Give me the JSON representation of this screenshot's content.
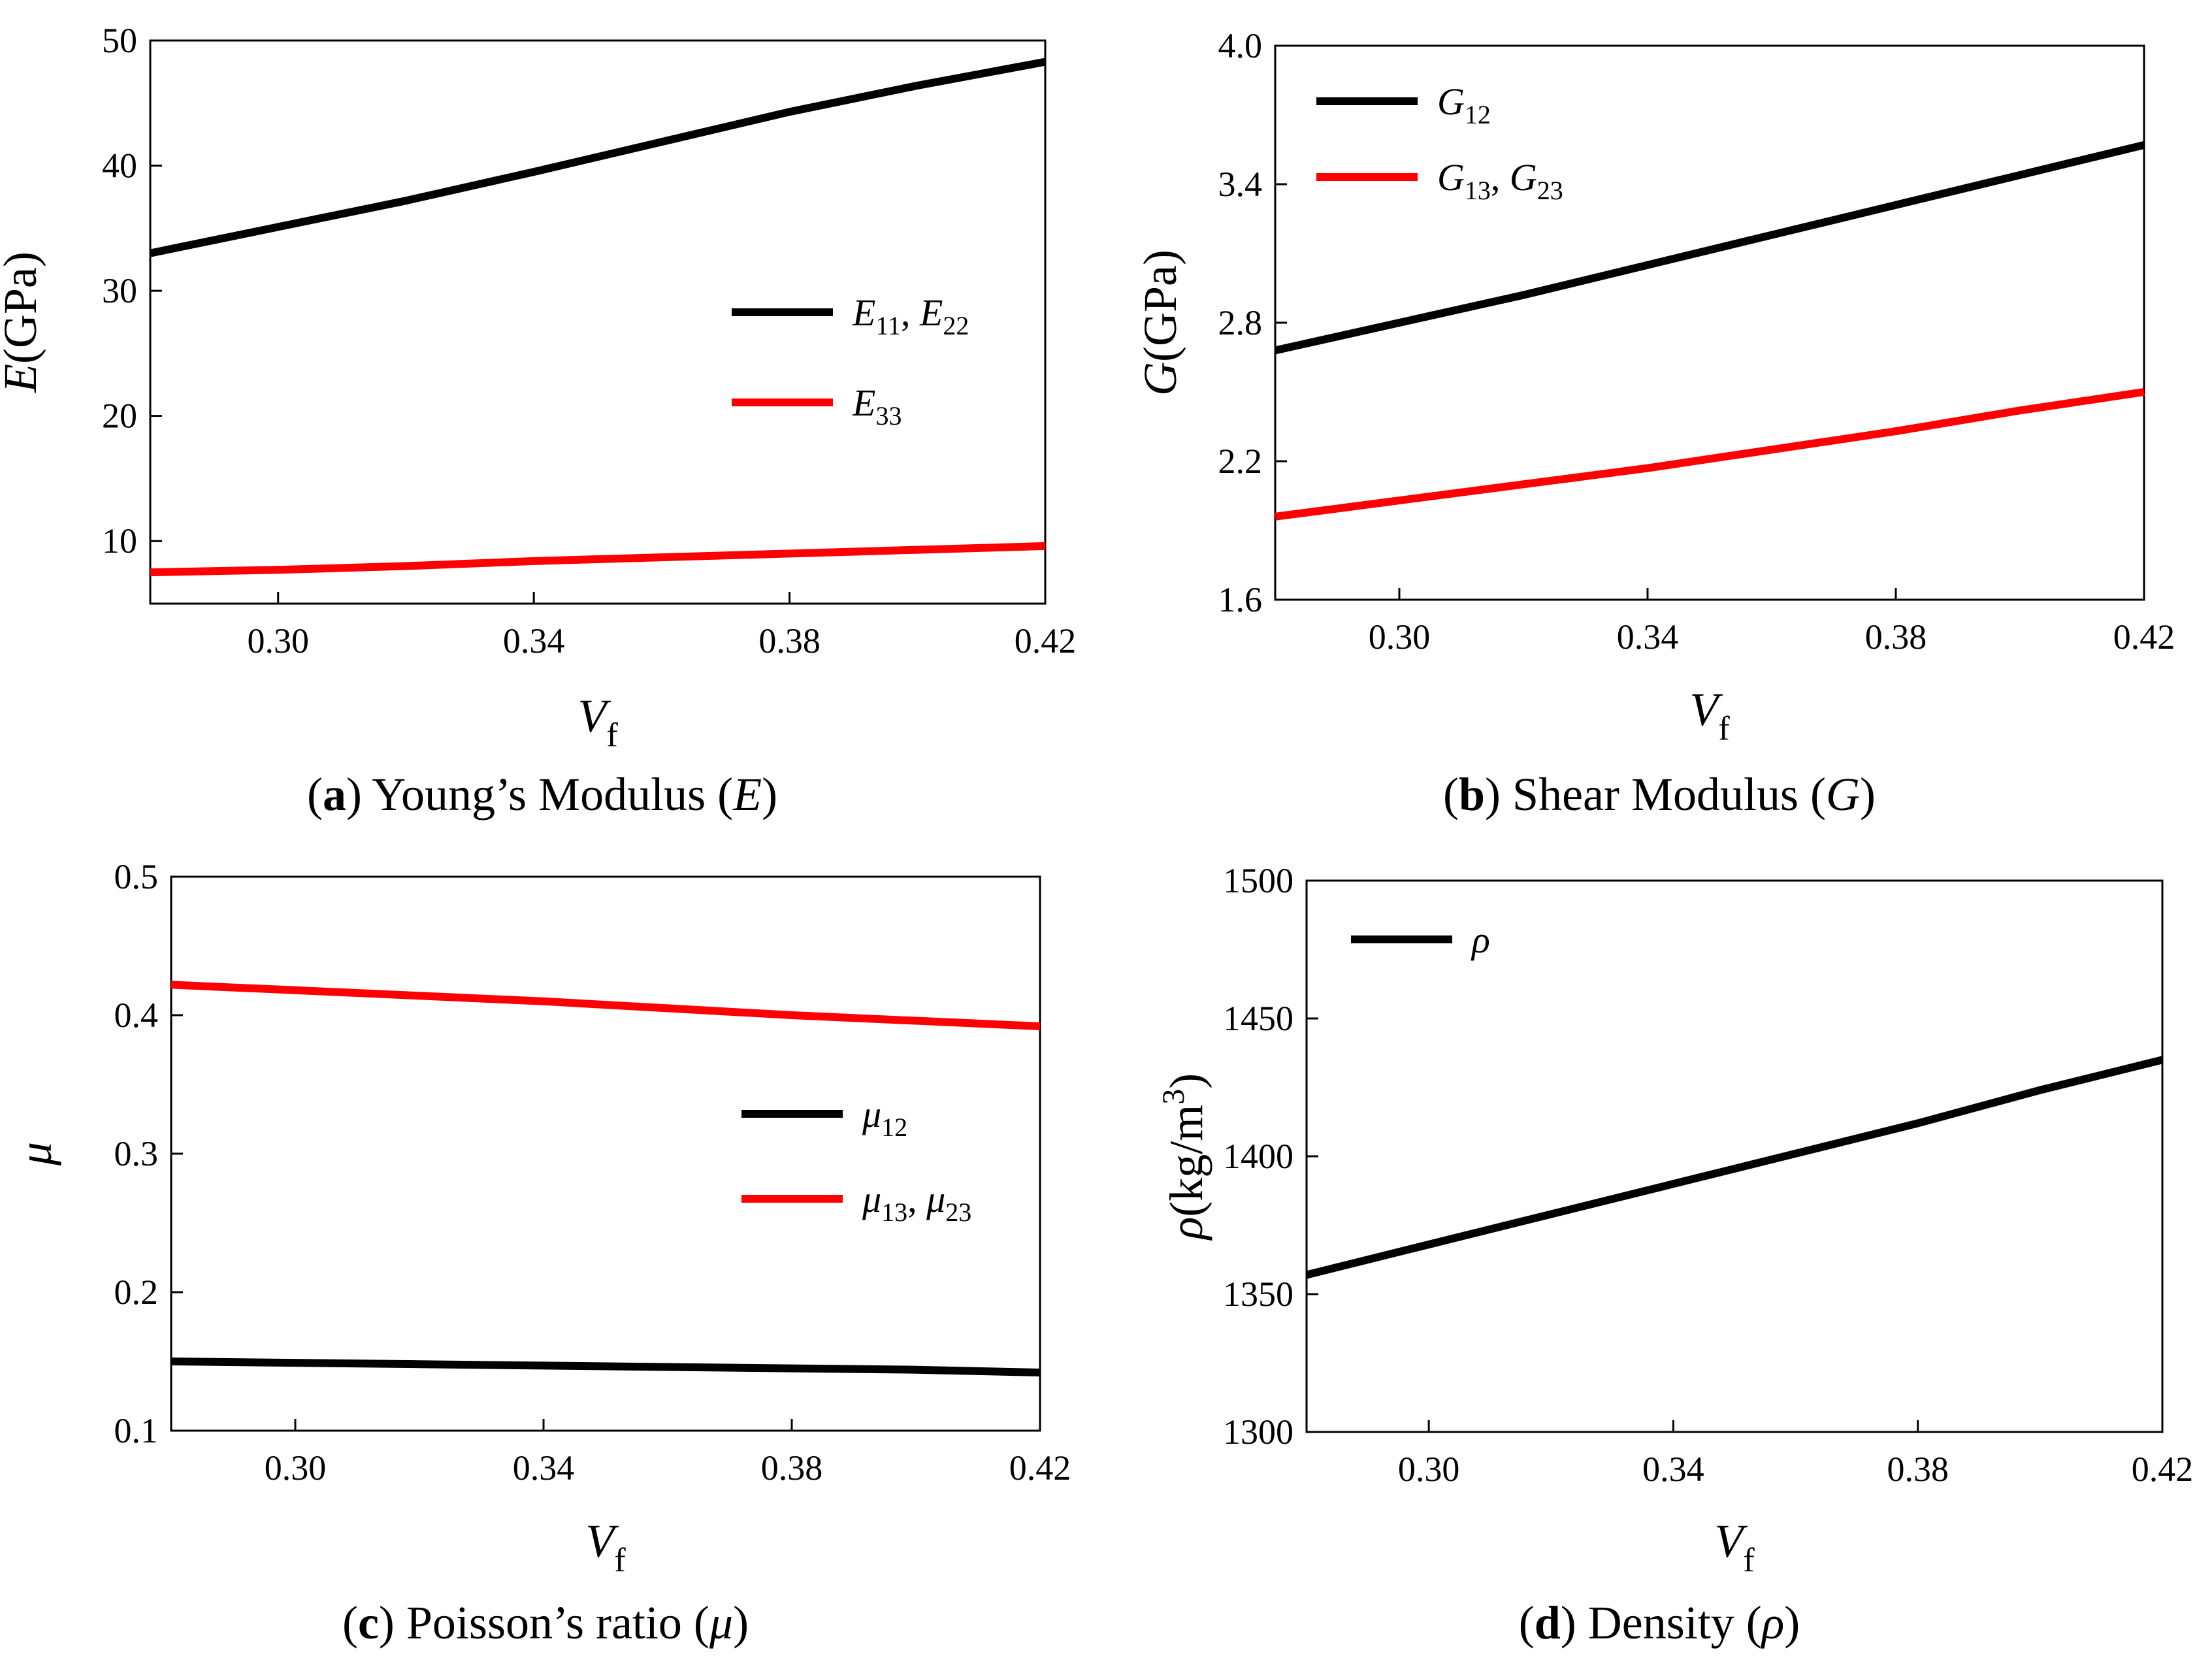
{
  "chart_data": [
    {
      "id": "a",
      "type": "line",
      "x": [
        0.28,
        0.3,
        0.32,
        0.34,
        0.36,
        0.38,
        0.4,
        0.42
      ],
      "series": [
        {
          "name": "E11, E22",
          "main": "E",
          "sub": "11",
          "main2": "E",
          "sub2": "22",
          "color": "#000000",
          "values": [
            33.0,
            35.1,
            37.2,
            39.5,
            41.9,
            44.3,
            46.4,
            48.3
          ]
        },
        {
          "name": "E33",
          "main": "E",
          "sub": "33",
          "color": "#ff0000",
          "values": [
            7.5,
            7.7,
            8.0,
            8.4,
            8.7,
            9.0,
            9.3,
            9.6
          ]
        }
      ],
      "xlim": [
        0.28,
        0.42
      ],
      "ylim": [
        5,
        50
      ],
      "xticks": [
        0.3,
        0.34,
        0.38,
        0.42
      ],
      "xtick_labels": [
        "0.30",
        "0.34",
        "0.38",
        "0.42"
      ],
      "yticks": [
        10,
        20,
        30,
        40,
        50
      ],
      "ytick_labels": [
        "10",
        "20",
        "30",
        "40",
        "50"
      ],
      "xlabel": {
        "main": "V",
        "sub": "f"
      },
      "ylabel": {
        "symbol": "E",
        "unit": "(GPa)"
      },
      "caption": {
        "letter": "a",
        "text": " Young’s Modulus (",
        "symbol": "E",
        "close": ")"
      },
      "legend": "center-right"
    },
    {
      "id": "b",
      "type": "line",
      "x": [
        0.28,
        0.3,
        0.32,
        0.34,
        0.36,
        0.38,
        0.4,
        0.42
      ],
      "series": [
        {
          "name": "G12",
          "main": "G",
          "sub": "12",
          "color": "#000000",
          "values": [
            2.68,
            2.8,
            2.92,
            3.05,
            3.18,
            3.31,
            3.44,
            3.57
          ]
        },
        {
          "name": "G13, G23",
          "main": "G",
          "sub": "13",
          "main2": "G",
          "sub2": "23",
          "color": "#ff0000",
          "values": [
            1.96,
            2.03,
            2.1,
            2.17,
            2.25,
            2.33,
            2.42,
            2.5
          ]
        }
      ],
      "xlim": [
        0.28,
        0.42
      ],
      "ylim": [
        1.6,
        4.0
      ],
      "xticks": [
        0.3,
        0.34,
        0.38,
        0.42
      ],
      "xtick_labels": [
        "0.30",
        "0.34",
        "0.38",
        "0.42"
      ],
      "yticks": [
        1.6,
        2.2,
        2.8,
        3.4,
        4.0
      ],
      "ytick_labels": [
        "1.6",
        "2.2",
        "2.8",
        "3.4",
        "4.0"
      ],
      "xlabel": {
        "main": "V",
        "sub": "f"
      },
      "ylabel": {
        "symbol": "G",
        "unit": "(GPa)"
      },
      "caption": {
        "letter": "b",
        "text": " Shear Modulus (",
        "symbol": "G",
        "close": ")"
      },
      "legend": "top-left"
    },
    {
      "id": "c",
      "type": "line",
      "x": [
        0.28,
        0.3,
        0.32,
        0.34,
        0.36,
        0.38,
        0.4,
        0.42
      ],
      "series": [
        {
          "name": "μ12",
          "main": "μ",
          "sub": "12",
          "color": "#000000",
          "values": [
            0.15,
            0.149,
            0.148,
            0.147,
            0.146,
            0.145,
            0.144,
            0.142
          ]
        },
        {
          "name": "μ13, μ23",
          "main": "μ",
          "sub": "13",
          "main2": "μ",
          "sub2": "23",
          "color": "#ff0000",
          "values": [
            0.422,
            0.418,
            0.414,
            0.41,
            0.405,
            0.4,
            0.396,
            0.392
          ]
        }
      ],
      "xlim": [
        0.28,
        0.42
      ],
      "ylim": [
        0.1,
        0.5
      ],
      "xticks": [
        0.3,
        0.34,
        0.38,
        0.42
      ],
      "xtick_labels": [
        "0.30",
        "0.34",
        "0.38",
        "0.42"
      ],
      "yticks": [
        0.1,
        0.2,
        0.3,
        0.4,
        0.5
      ],
      "ytick_labels": [
        "0.1",
        "0.2",
        "0.3",
        "0.4",
        "0.5"
      ],
      "xlabel": {
        "main": "V",
        "sub": "f"
      },
      "ylabel": {
        "symbol": "μ",
        "unit": ""
      },
      "caption": {
        "letter": "c",
        "text": " Poisson’s ratio (",
        "symbol": "μ",
        "close": ")"
      },
      "legend": "center-right"
    },
    {
      "id": "d",
      "type": "line",
      "x": [
        0.28,
        0.3,
        0.32,
        0.34,
        0.36,
        0.38,
        0.4,
        0.42
      ],
      "series": [
        {
          "name": "ρ",
          "main": "ρ",
          "sub": "",
          "color": "#000000",
          "values": [
            1357,
            1368,
            1379,
            1390,
            1401,
            1412,
            1424,
            1435
          ]
        }
      ],
      "xlim": [
        0.28,
        0.42
      ],
      "ylim": [
        1300,
        1500
      ],
      "xticks": [
        0.3,
        0.34,
        0.38,
        0.42
      ],
      "xtick_labels": [
        "0.30",
        "0.34",
        "0.38",
        "0.42"
      ],
      "yticks": [
        1300,
        1350,
        1400,
        1450,
        1500
      ],
      "ytick_labels": [
        "1300",
        "1350",
        "1400",
        "1450",
        "1500"
      ],
      "xlabel": {
        "main": "V",
        "sub": "f"
      },
      "ylabel": {
        "symbol": "ρ",
        "unit": "(kg/m",
        "sup": "3",
        "close": ")"
      },
      "caption": {
        "letter": "d",
        "text": " Density (",
        "symbol": "ρ",
        "close": ")"
      },
      "legend": "top-left"
    }
  ]
}
